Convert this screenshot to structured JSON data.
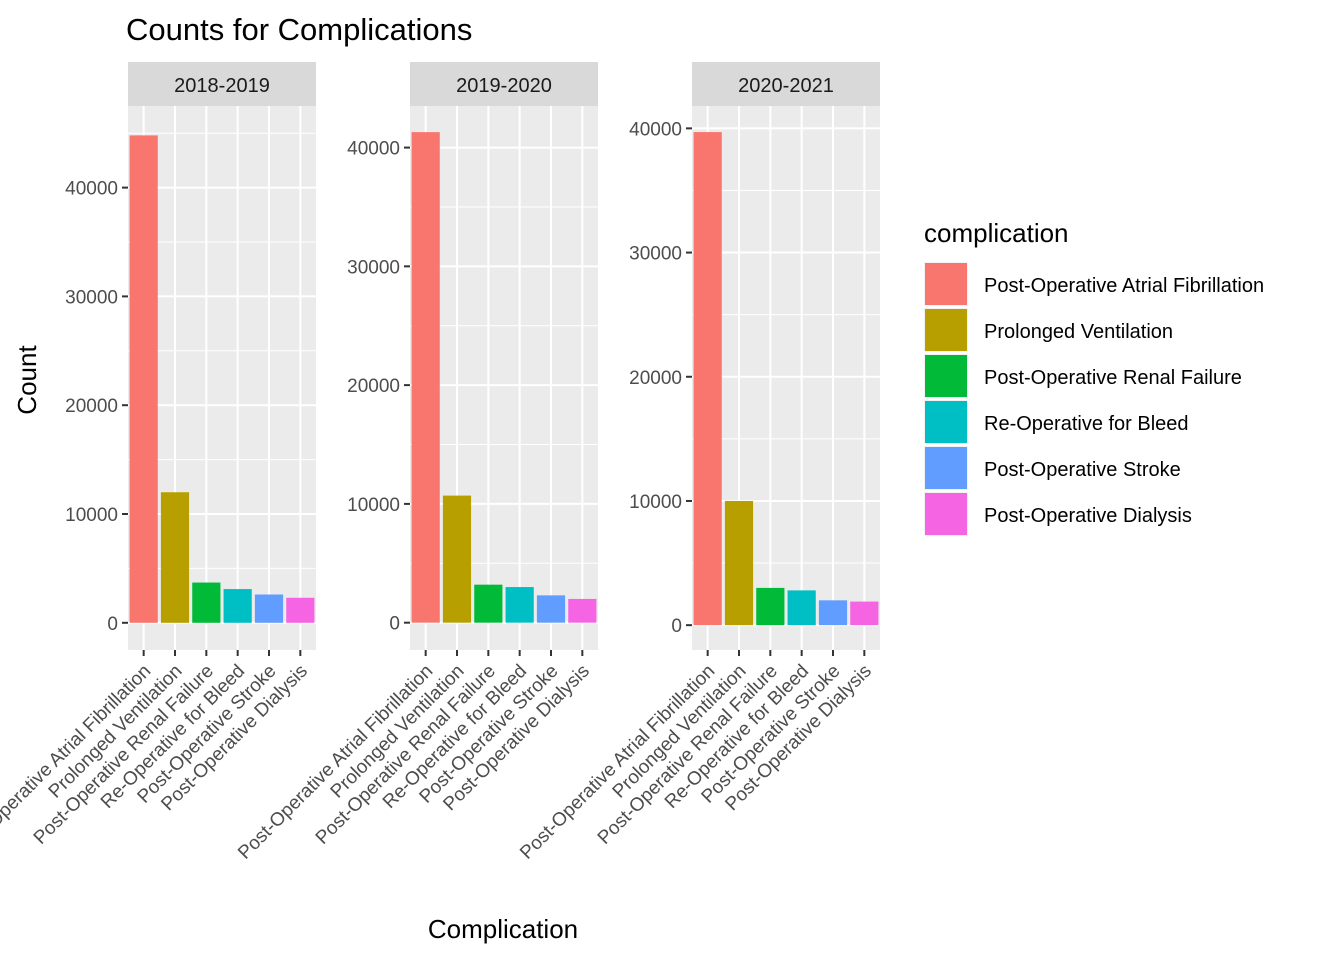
{
  "chart_data": {
    "type": "bar",
    "title": "Counts for Complications",
    "xlabel": "Complication",
    "ylabel": "Count",
    "categories": [
      "Post-Operative Atrial Fibrillation",
      "Prolonged Ventilation",
      "Post-Operative Renal Failure",
      "Re-Operative for Bleed",
      "Post-Operative Stroke",
      "Post-Operative Dialysis"
    ],
    "colors": [
      "#F8766D",
      "#B79F00",
      "#00BA38",
      "#00BFC4",
      "#619CFF",
      "#F564E3"
    ],
    "legend": {
      "title": "complication",
      "position": "right"
    },
    "grid": true,
    "facets": [
      {
        "label": "2018-2019",
        "values": [
          44800,
          12000,
          3700,
          3100,
          2600,
          2300
        ],
        "ylim": [
          -2500,
          47500
        ],
        "yticks": [
          0,
          10000,
          20000,
          30000,
          40000
        ]
      },
      {
        "label": "2019-2020",
        "values": [
          41300,
          10700,
          3200,
          3000,
          2300,
          2000
        ],
        "ylim": [
          -2300,
          43500
        ],
        "yticks": [
          0,
          10000,
          20000,
          30000,
          40000
        ]
      },
      {
        "label": "2020-2021",
        "values": [
          39700,
          10000,
          3000,
          2800,
          2000,
          1900
        ],
        "ylim": [
          -2000,
          41800
        ],
        "yticks": [
          0,
          10000,
          20000,
          30000,
          40000
        ]
      }
    ]
  }
}
